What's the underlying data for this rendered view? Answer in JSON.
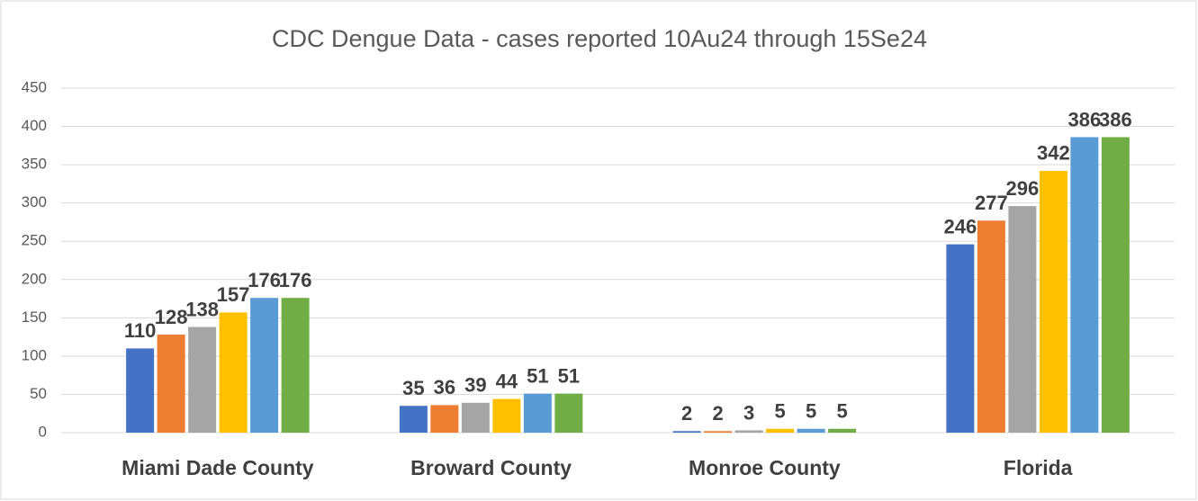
{
  "chart_data": {
    "type": "bar",
    "title": "CDC Dengue Data - cases reported 10Au24 through 15Se24",
    "categories": [
      "Miami Dade County",
      "Broward County",
      "Monroe County",
      "Florida"
    ],
    "series": [
      {
        "color": "#4472c4",
        "values": [
          110,
          35,
          2,
          246
        ]
      },
      {
        "color": "#ed7d31",
        "values": [
          128,
          36,
          2,
          277
        ]
      },
      {
        "color": "#a5a5a5",
        "values": [
          138,
          39,
          3,
          296
        ]
      },
      {
        "color": "#ffc000",
        "values": [
          157,
          44,
          5,
          342
        ]
      },
      {
        "color": "#5b9bd5",
        "values": [
          176,
          51,
          5,
          386
        ]
      },
      {
        "color": "#70ad47",
        "values": [
          176,
          51,
          5,
          386
        ]
      }
    ],
    "ylim": [
      0,
      450
    ],
    "yticks": [
      0,
      50,
      100,
      150,
      200,
      250,
      300,
      350,
      400,
      450
    ],
    "grid": true
  }
}
